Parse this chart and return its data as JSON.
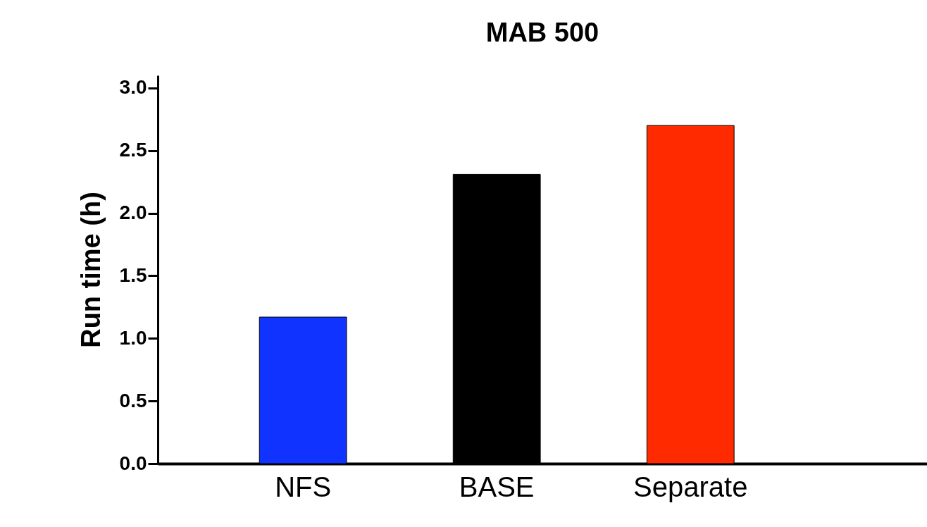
{
  "chart_data": {
    "type": "bar",
    "title": "MAB 500",
    "ylabel": "Run time (h)",
    "categories": [
      "NFS",
      "BASE",
      "Separate"
    ],
    "values": [
      1.17,
      2.31,
      2.7
    ],
    "colors": [
      "#1133ff",
      "#000000",
      "#ff2a00"
    ],
    "ylim": [
      0,
      3.1
    ],
    "yticks": [
      {
        "value": 0,
        "label": "0.0"
      },
      {
        "value": 0.5,
        "label": "0.5"
      },
      {
        "value": 1,
        "label": "1.0"
      },
      {
        "value": 1.5,
        "label": "1.5"
      },
      {
        "value": 2,
        "label": "2.0"
      },
      {
        "value": 2.5,
        "label": "2.5"
      },
      {
        "value": 3,
        "label": "3.0"
      }
    ],
    "grid": false
  }
}
